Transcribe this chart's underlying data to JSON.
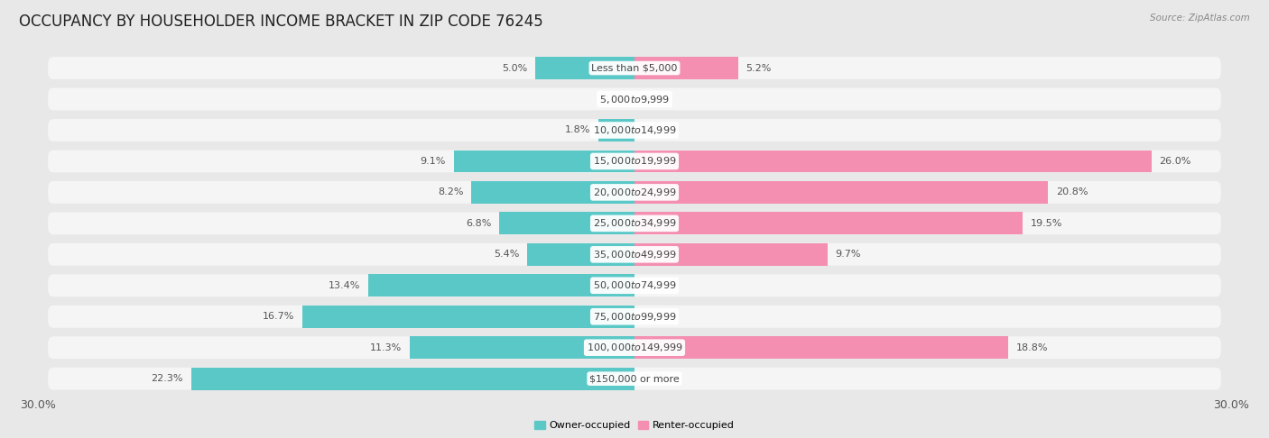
{
  "title": "OCCUPANCY BY HOUSEHOLDER INCOME BRACKET IN ZIP CODE 76245",
  "source": "Source: ZipAtlas.com",
  "categories": [
    "Less than $5,000",
    "$5,000 to $9,999",
    "$10,000 to $14,999",
    "$15,000 to $19,999",
    "$20,000 to $24,999",
    "$25,000 to $34,999",
    "$35,000 to $49,999",
    "$50,000 to $74,999",
    "$75,000 to $99,999",
    "$100,000 to $149,999",
    "$150,000 or more"
  ],
  "owner_values": [
    5.0,
    0.0,
    1.8,
    9.1,
    8.2,
    6.8,
    5.4,
    13.4,
    16.7,
    11.3,
    22.3
  ],
  "renter_values": [
    5.2,
    0.0,
    0.0,
    26.0,
    20.8,
    19.5,
    9.7,
    0.0,
    0.0,
    18.8,
    0.0
  ],
  "owner_color": "#5bc8c8",
  "renter_color": "#f48fb1",
  "background_color": "#e8e8e8",
  "bar_bg_color": "#f5f5f5",
  "x_min": -30.0,
  "x_max": 30.0,
  "legend_owner": "Owner-occupied",
  "legend_renter": "Renter-occupied",
  "title_fontsize": 12,
  "label_fontsize": 8,
  "category_fontsize": 8,
  "axis_label_fontsize": 9
}
